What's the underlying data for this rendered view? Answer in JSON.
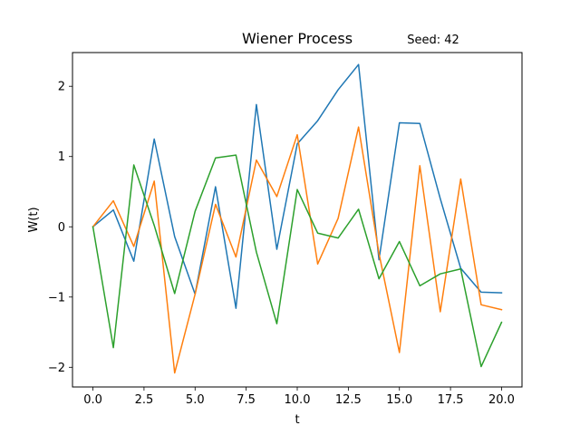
{
  "chart_data": {
    "type": "line",
    "title": "Wiener Process",
    "annotation": "Seed: 42",
    "xlabel": "t",
    "ylabel": "W(t)",
    "xlim": [
      -1.0,
      21.0
    ],
    "ylim": [
      -2.28,
      2.48
    ],
    "xticks": [
      0,
      2.5,
      5,
      7.5,
      10,
      12.5,
      15,
      17.5,
      20
    ],
    "xtick_labels": [
      "0.0",
      "2.5",
      "5.0",
      "7.5",
      "10.0",
      "12.5",
      "15.0",
      "17.5",
      "20.0"
    ],
    "yticks": [
      -2,
      -1,
      0,
      1,
      2
    ],
    "ytick_labels": [
      "−2",
      "−1",
      "0",
      "1",
      "2"
    ],
    "grid": false,
    "x": [
      0,
      1,
      2,
      3,
      4,
      5,
      6,
      7,
      8,
      9,
      10,
      11,
      12,
      13,
      14,
      15,
      16,
      17,
      18,
      19,
      20
    ],
    "series": [
      {
        "color": "#1f77b4",
        "values": [
          0.0,
          0.24,
          -0.49,
          1.25,
          -0.14,
          -0.96,
          0.57,
          -1.16,
          1.74,
          -0.32,
          1.18,
          1.51,
          1.95,
          2.31,
          -0.47,
          1.48,
          1.47,
          0.4,
          -0.59,
          -0.93,
          -0.94
        ]
      },
      {
        "color": "#ff7f0e",
        "values": [
          0.0,
          0.37,
          -0.28,
          0.65,
          -2.08,
          -0.96,
          0.32,
          -0.43,
          0.95,
          0.43,
          1.31,
          -0.53,
          0.12,
          1.42,
          -0.38,
          -1.79,
          0.87,
          -1.21,
          0.68,
          -1.11,
          -1.18
        ]
      },
      {
        "color": "#2ca02c",
        "values": [
          0.0,
          -1.72,
          0.88,
          0.02,
          -0.95,
          0.22,
          0.98,
          1.02,
          -0.36,
          -1.38,
          0.53,
          -0.09,
          -0.16,
          0.25,
          -0.74,
          -0.21,
          -0.84,
          -0.67,
          -0.6,
          -1.99,
          -1.36
        ]
      }
    ]
  }
}
